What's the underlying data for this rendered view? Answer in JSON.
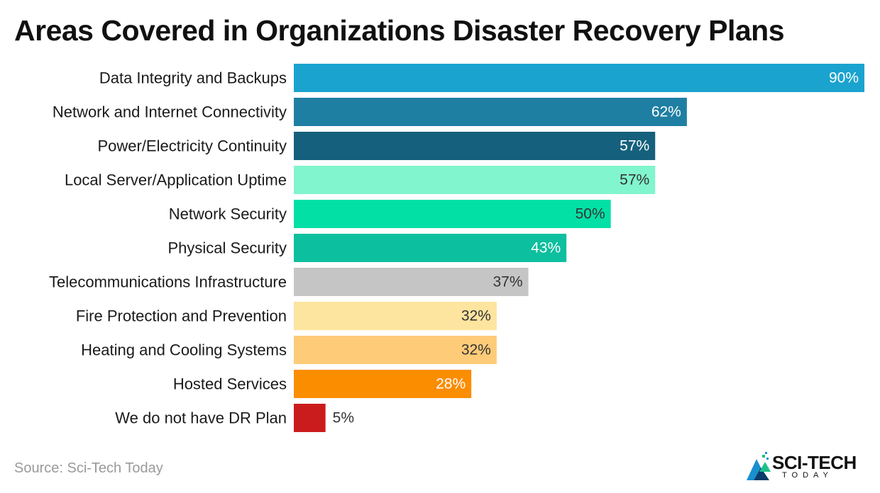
{
  "title": "Areas Covered in Organizations Disaster Recovery Plans",
  "source": "Source: Sci-Tech Today",
  "logo": {
    "main": "SCI-TECH",
    "sub": "TODAY"
  },
  "chart_data": {
    "type": "bar",
    "orientation": "horizontal",
    "title": "Areas Covered in Organizations Disaster Recovery Plans",
    "categories": [
      "Data Integrity and Backups",
      "Network and Internet Connectivity",
      "Power/Electricity Continuity",
      "Local Server/Application Uptime",
      "Network Security",
      "Physical Security",
      "Telecommunications Infrastructure",
      "Fire Protection and Prevention",
      "Heating and Cooling Systems",
      "Hosted Services",
      "We do not have DR Plan"
    ],
    "values": [
      90,
      62,
      57,
      57,
      50,
      43,
      37,
      32,
      32,
      28,
      5
    ],
    "value_labels": [
      "90%",
      "62%",
      "57%",
      "57%",
      "50%",
      "43%",
      "37%",
      "32%",
      "32%",
      "28%",
      "5%"
    ],
    "colors": [
      "#1aa3cf",
      "#1e7fa3",
      "#15607c",
      "#81f5ce",
      "#03e0a6",
      "#0cbf9e",
      "#c5c5c5",
      "#fde49f",
      "#fecb78",
      "#fb8d00",
      "#ca1c1c"
    ],
    "label_colors": [
      "#ffffff",
      "#ffffff",
      "#ffffff",
      "#333333",
      "#333333",
      "#ffffff",
      "#333333",
      "#333333",
      "#333333",
      "#ffffff",
      "#333333"
    ],
    "xlim": [
      0,
      90
    ],
    "grid": false,
    "legend": "none"
  }
}
